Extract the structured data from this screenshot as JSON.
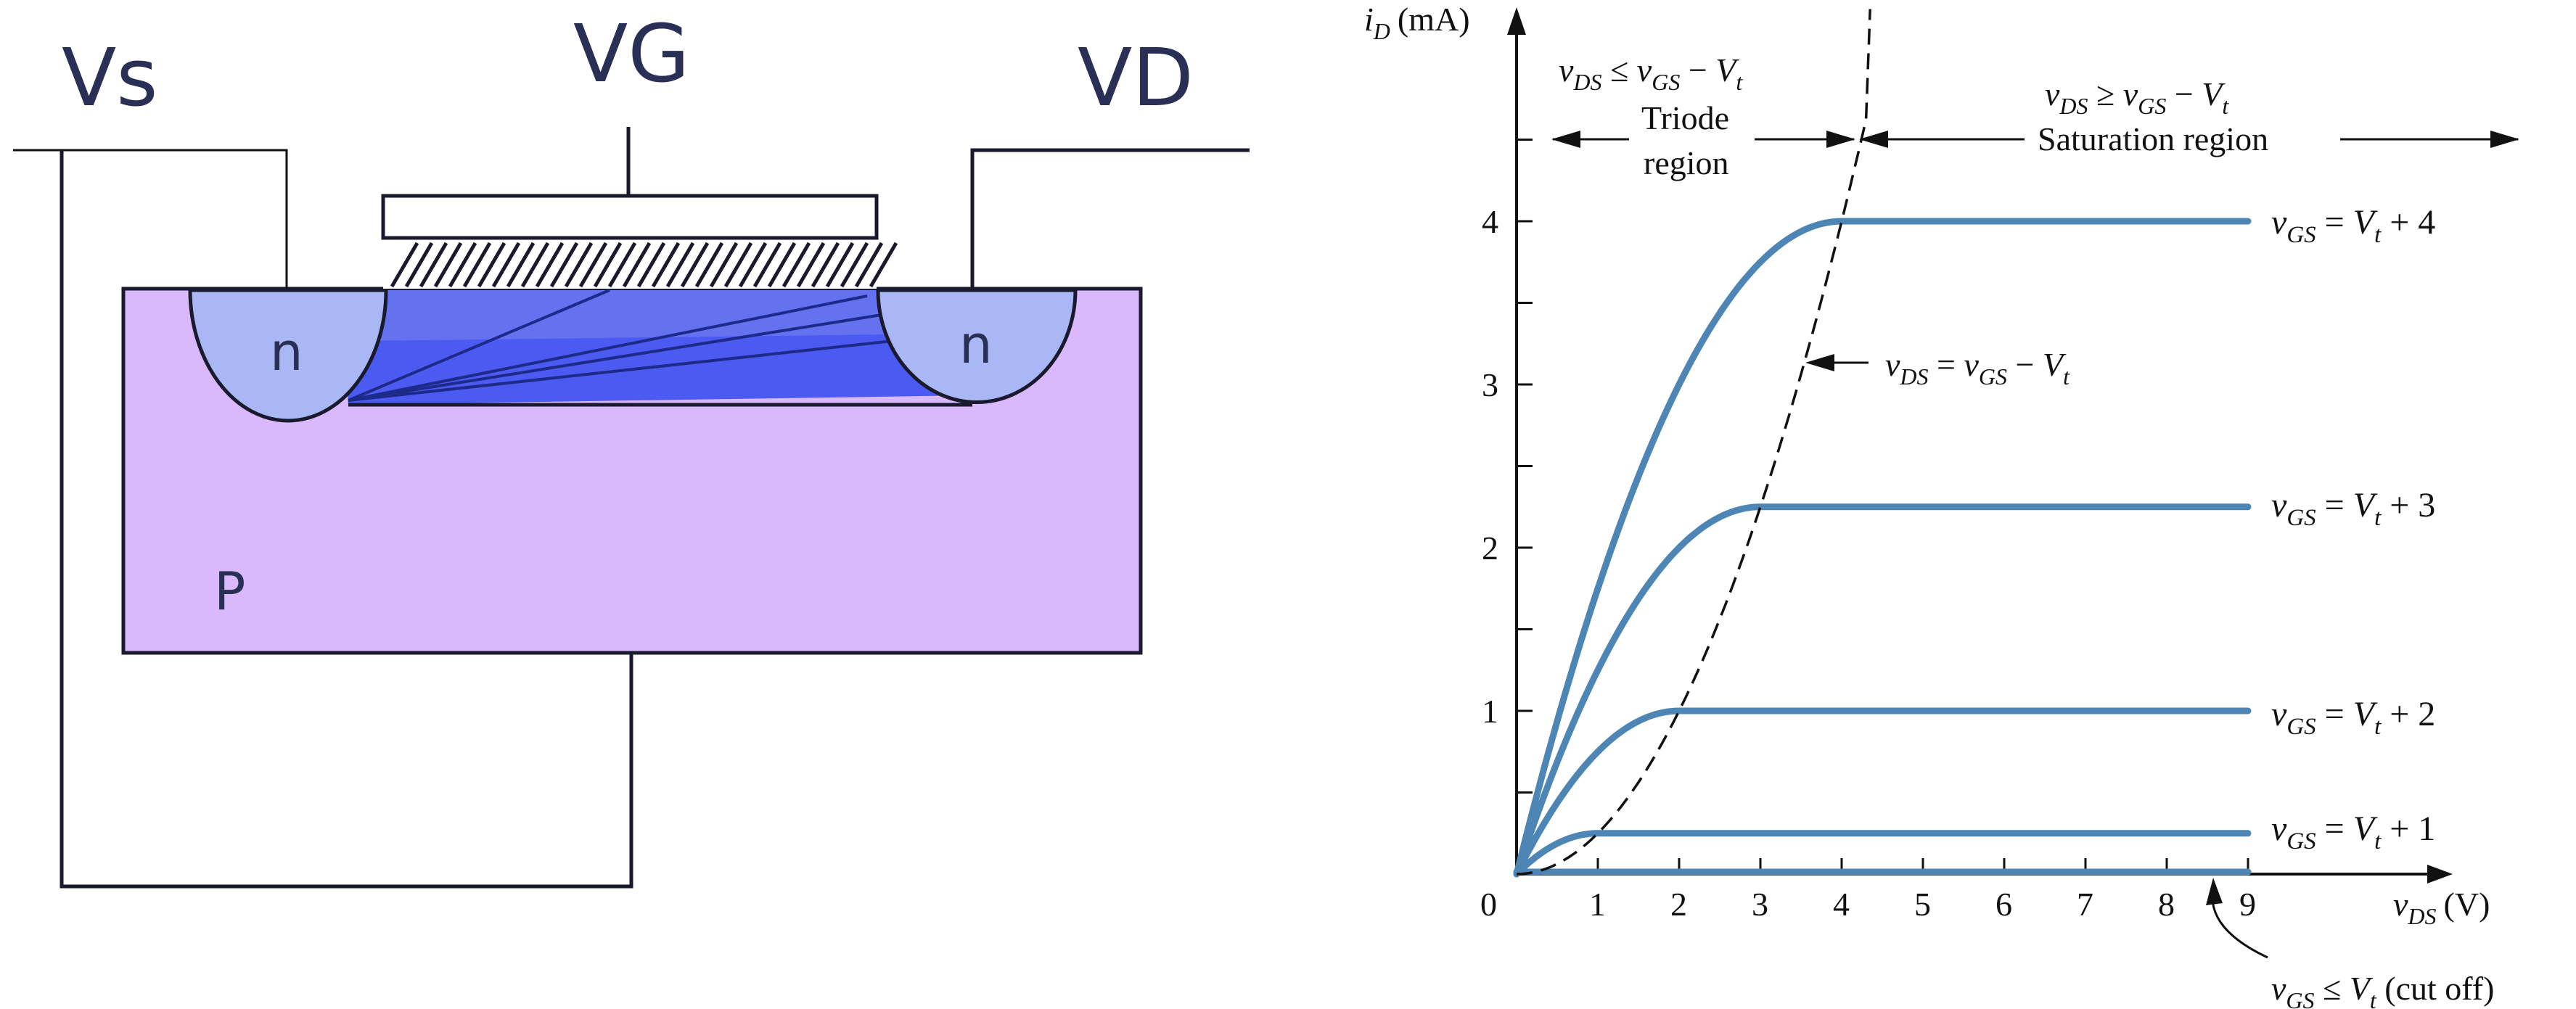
{
  "device": {
    "source_label": "Vs",
    "gate_label": "VG",
    "drain_label": "VD",
    "source_region_label": "n",
    "drain_region_label": "n",
    "substrate_label": "P",
    "colors": {
      "substrate": "#d9b8fb",
      "n_region": "#a9b8f5",
      "channel": "#4b5af0",
      "channel_dark": "#2e3be0",
      "outline": "#1a1a2e"
    }
  },
  "chart_data": {
    "type": "line",
    "xlabel_main": "v",
    "xlabel_sub": "DS",
    "xlabel_unit": "(V)",
    "ylabel_main": "i",
    "ylabel_sub": "D",
    "ylabel_unit": "(mA)",
    "x_ticks": [
      "0",
      "1",
      "2",
      "3",
      "4",
      "5",
      "6",
      "7",
      "8",
      "9"
    ],
    "y_ticks": [
      "1",
      "2",
      "3",
      "4"
    ],
    "xlim": [
      0,
      9.7
    ],
    "ylim": [
      0,
      5.2
    ],
    "series": [
      {
        "label": "v_GS = V_t + 4",
        "sat_current": 4.0,
        "sat_voltage": 4.0
      },
      {
        "label": "v_GS = V_t + 3",
        "sat_current": 2.25,
        "sat_voltage": 3.0
      },
      {
        "label": "v_GS = V_t + 2",
        "sat_current": 1.0,
        "sat_voltage": 2.0
      },
      {
        "label": "v_GS = V_t + 1",
        "sat_current": 0.25,
        "sat_voltage": 1.0
      }
    ],
    "boundary_curve": "v_DS = v_GS − V_t",
    "regions": {
      "triode_condition": "v_DS ≤ v_GS − V_t",
      "triode_label_line1": "Triode",
      "triode_label_line2": "region",
      "saturation_condition": "v_DS ≥ v_GS − V_t",
      "saturation_label": "Saturation region"
    },
    "cutoff_label": "v_GS ≤ V_t (cut off)",
    "curve_color": "#4d86b5"
  },
  "text": {
    "origin": "0",
    "lbl4_pre": "v",
    "lbl4_sub": "GS",
    "lbl4_mid": " = V",
    "lbl4_t": "t",
    "lbl4_end": " + 4",
    "lbl3_end": " + 3",
    "lbl2_end": " + 2",
    "lbl1_end": " + 1",
    "eq": " = ",
    "minus": " − ",
    "le": " ≤ ",
    "ge": " ≥ ",
    "v": "v",
    "V": "V",
    "DS": "DS",
    "GS": "GS",
    "t": "t",
    "cut_off": " (cut off)"
  }
}
